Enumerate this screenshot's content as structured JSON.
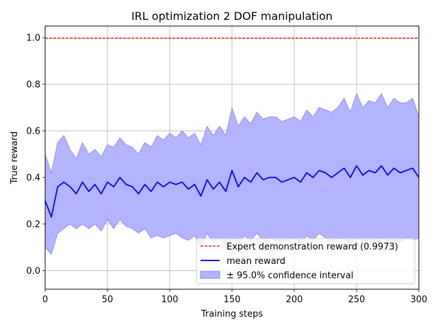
{
  "chart_data": {
    "type": "line",
    "title": "IRL optimization 2 DOF manipulation",
    "xlabel": "Training steps",
    "ylabel": "True reward",
    "xlim": [
      0,
      300
    ],
    "ylim": [
      -0.08,
      1.05
    ],
    "xticks": [
      0,
      50,
      100,
      150,
      200,
      250,
      300
    ],
    "yticks": [
      0.0,
      0.2,
      0.4,
      0.6,
      0.8,
      1.0
    ],
    "xtick_labels": [
      "0",
      "50",
      "100",
      "150",
      "200",
      "250",
      "300"
    ],
    "ytick_labels": [
      "0.0",
      "0.2",
      "0.4",
      "0.6",
      "0.8",
      "1.0"
    ],
    "grid": true,
    "legend_position": "lower-right",
    "colors": {
      "mean": "#0000ff",
      "band_fill": "#b3b3ff",
      "band_edge": "#8080ff",
      "expert": "#ff0000",
      "grid": "#b0b0b0"
    },
    "expert_reward": 0.9973,
    "series": [
      {
        "name": "mean reward",
        "x": [
          0,
          5,
          10,
          15,
          20,
          25,
          30,
          35,
          40,
          45,
          50,
          55,
          60,
          65,
          70,
          75,
          80,
          85,
          90,
          95,
          100,
          105,
          110,
          115,
          120,
          125,
          130,
          135,
          140,
          145,
          150,
          155,
          160,
          165,
          170,
          175,
          180,
          185,
          190,
          195,
          200,
          205,
          210,
          215,
          220,
          225,
          230,
          235,
          240,
          245,
          250,
          255,
          260,
          265,
          270,
          275,
          280,
          285,
          290,
          295,
          300
        ],
        "values": [
          0.3,
          0.23,
          0.36,
          0.38,
          0.36,
          0.33,
          0.38,
          0.34,
          0.37,
          0.33,
          0.38,
          0.36,
          0.4,
          0.37,
          0.36,
          0.33,
          0.37,
          0.34,
          0.38,
          0.36,
          0.38,
          0.37,
          0.38,
          0.35,
          0.37,
          0.32,
          0.39,
          0.35,
          0.38,
          0.34,
          0.43,
          0.36,
          0.4,
          0.38,
          0.42,
          0.39,
          0.4,
          0.4,
          0.38,
          0.39,
          0.4,
          0.38,
          0.42,
          0.4,
          0.43,
          0.42,
          0.4,
          0.42,
          0.44,
          0.4,
          0.45,
          0.41,
          0.43,
          0.42,
          0.45,
          0.41,
          0.44,
          0.42,
          0.43,
          0.44,
          0.4
        ],
        "lower": [
          0.1,
          0.07,
          0.16,
          0.18,
          0.2,
          0.18,
          0.2,
          0.18,
          0.2,
          0.17,
          0.22,
          0.18,
          0.22,
          0.19,
          0.18,
          0.16,
          0.18,
          0.14,
          0.15,
          0.14,
          0.15,
          0.16,
          0.14,
          0.13,
          0.15,
          0.1,
          0.16,
          0.12,
          0.14,
          0.1,
          0.14,
          0.11,
          0.15,
          0.13,
          0.16,
          0.13,
          0.14,
          0.13,
          0.12,
          0.13,
          0.14,
          0.12,
          0.15,
          0.13,
          0.16,
          0.14,
          0.12,
          0.14,
          0.13,
          0.12,
          0.14,
          0.12,
          0.13,
          0.12,
          0.14,
          0.12,
          0.13,
          0.12,
          0.14,
          0.13,
          0.14
        ],
        "upper": [
          0.5,
          0.42,
          0.55,
          0.58,
          0.52,
          0.48,
          0.55,
          0.5,
          0.52,
          0.49,
          0.54,
          0.53,
          0.57,
          0.54,
          0.53,
          0.5,
          0.55,
          0.53,
          0.58,
          0.56,
          0.59,
          0.57,
          0.6,
          0.57,
          0.59,
          0.54,
          0.62,
          0.58,
          0.62,
          0.58,
          0.7,
          0.62,
          0.66,
          0.63,
          0.68,
          0.65,
          0.66,
          0.66,
          0.64,
          0.65,
          0.66,
          0.64,
          0.69,
          0.66,
          0.7,
          0.69,
          0.68,
          0.7,
          0.74,
          0.68,
          0.76,
          0.7,
          0.73,
          0.72,
          0.76,
          0.7,
          0.74,
          0.72,
          0.72,
          0.74,
          0.66
        ]
      }
    ],
    "legend": {
      "expert_label": "Expert demonstration reward (0.9973)",
      "mean_label": "mean reward",
      "band_label": "± 95.0% confidence interval"
    }
  }
}
